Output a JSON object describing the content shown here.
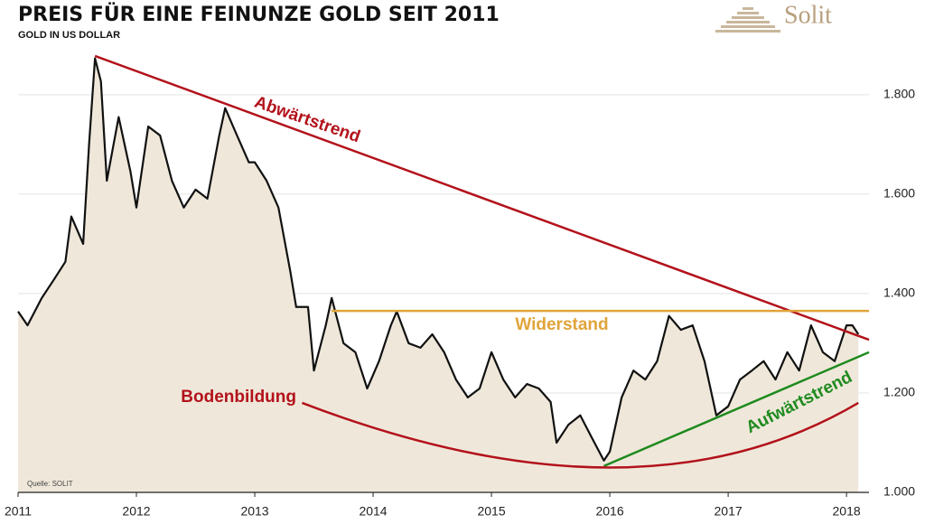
{
  "chart_data": {
    "type": "area-line",
    "title": "PREIS FÜR EINE FEINUNZE GOLD SEIT 2011",
    "subtitle": "GOLD IN US DOLLAR",
    "source": "Quelle: SOLIT",
    "logo": "Solit",
    "x": [
      2011.0,
      2011.08,
      2011.2,
      2011.3,
      2011.4,
      2011.45,
      2011.55,
      2011.6,
      2011.65,
      2011.7,
      2011.75,
      2011.85,
      2011.95,
      2012.0,
      2012.1,
      2012.2,
      2012.3,
      2012.4,
      2012.5,
      2012.6,
      2012.7,
      2012.75,
      2012.85,
      2012.95,
      2013.0,
      2013.1,
      2013.2,
      2013.3,
      2013.35,
      2013.45,
      2013.5,
      2013.6,
      2013.65,
      2013.75,
      2013.85,
      2013.95,
      2014.05,
      2014.15,
      2014.2,
      2014.3,
      2014.4,
      2014.5,
      2014.6,
      2014.7,
      2014.8,
      2014.9,
      2015.0,
      2015.1,
      2015.2,
      2015.3,
      2015.4,
      2015.5,
      2015.55,
      2015.65,
      2015.75,
      2015.85,
      2015.95,
      2016.0,
      2016.1,
      2016.2,
      2016.3,
      2016.4,
      2016.5,
      2016.6,
      2016.7,
      2016.8,
      2016.9,
      2017.0,
      2017.1,
      2017.2,
      2017.3,
      2017.4,
      2017.5,
      2017.6,
      2017.7,
      2017.8,
      2017.9,
      2018.0,
      2018.05,
      2018.1
    ],
    "series": [
      {
        "name": "Gold",
        "color": "#111111",
        "fill": "#efe8da",
        "values": [
          1364,
          1336,
          1391,
          1427,
          1464,
          1555,
          1500,
          1700,
          1873,
          1827,
          1627,
          1755,
          1645,
          1573,
          1736,
          1718,
          1627,
          1573,
          1609,
          1591,
          1718,
          1773,
          1718,
          1664,
          1664,
          1627,
          1573,
          1445,
          1373,
          1373,
          1245,
          1336,
          1391,
          1300,
          1282,
          1209,
          1264,
          1336,
          1364,
          1300,
          1291,
          1318,
          1282,
          1227,
          1191,
          1209,
          1282,
          1227,
          1191,
          1218,
          1209,
          1182,
          1100,
          1136,
          1155,
          1109,
          1064,
          1082,
          1191,
          1245,
          1227,
          1264,
          1355,
          1327,
          1336,
          1264,
          1155,
          1173,
          1227,
          1245,
          1264,
          1227,
          1282,
          1245,
          1336,
          1282,
          1264,
          1336,
          1336,
          1318
        ]
      }
    ],
    "annotations": [
      {
        "text": "Abwärtstrend",
        "color": "#b3121b",
        "x": [
          2011.65,
          2018.19
        ],
        "y": [
          1878,
          1307
        ]
      },
      {
        "text": "Widerstand",
        "color": "#e0a43a",
        "x": [
          2013.65,
          2018.19
        ],
        "y": [
          1365,
          1365
        ]
      },
      {
        "text": "Aufwärtstrend",
        "color": "#1f8a1f",
        "x": [
          2015.95,
          2018.19
        ],
        "y": [
          1053,
          1282
        ]
      },
      {
        "text": "Bodenbildung",
        "color": "#b3121b",
        "x": [
          2013.4,
          2016.0,
          2018.1
        ],
        "y": [
          1180,
          1050,
          1180
        ]
      }
    ],
    "xlim": [
      2011,
      2018.19
    ],
    "xticks": [
      2011,
      2012,
      2013,
      2014,
      2015,
      2016,
      2017,
      2018
    ],
    "ylim": [
      1000,
      1896
    ],
    "yticks": [
      {
        "value": 1000,
        "label": "1.000"
      },
      {
        "value": 1200,
        "label": "1.200"
      },
      {
        "value": 1400,
        "label": "1.400"
      },
      {
        "value": 1600,
        "label": "1.600"
      },
      {
        "value": 1800,
        "label": "1.800"
      }
    ],
    "grid": true
  }
}
